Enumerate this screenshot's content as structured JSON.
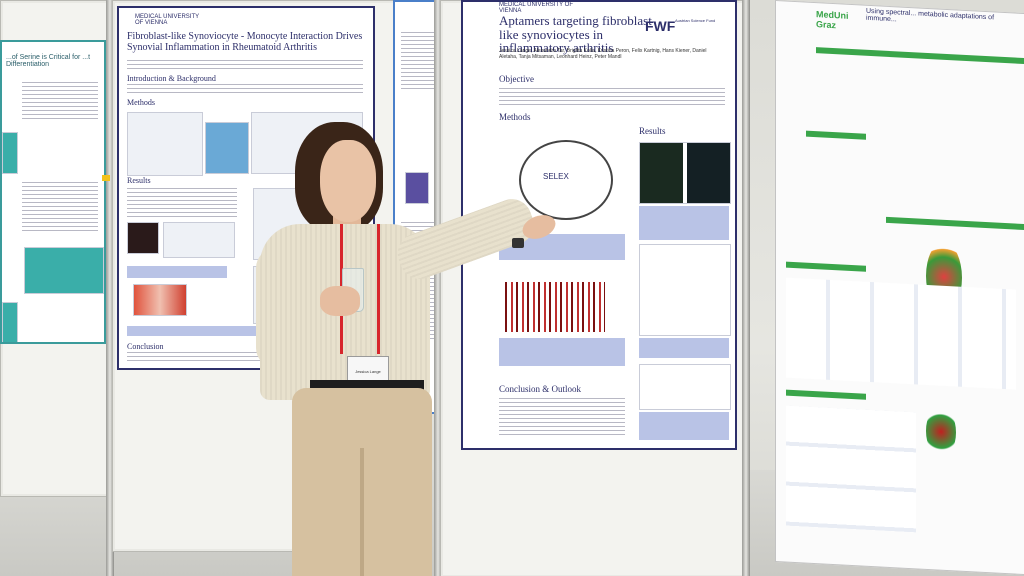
{
  "scene": {
    "description_alt": ""
  },
  "poster_left": {
    "logo": "MEDICAL UNIVERSITY OF VIENNA",
    "title": "Fibroblast-like Synoviocyte - Monocyte Interaction Drives Synovial Inflammation in Rheumatoid Arthritis",
    "section_intro": "Introduction & Background",
    "section_methods": "Methods",
    "section_results": "Results",
    "section_conclusion": "Conclusion"
  },
  "poster_far_left": {
    "title_fragment": "...of Serine is Critical for ...t Differentiation"
  },
  "poster_center": {
    "logo": "MEDICAL UNIVERSITY OF VIENNA",
    "funder": "FWF",
    "funder_sub": "Austrian Science Fund",
    "title": "Aptamers targeting fibroblast-like synoviocytes in inflammatory arthritis",
    "authors": "Jessica Lange, Alexandra Tar, Brigitta Kolla, Kristina Peron, Felix Kartnig, Hans Kiener, Daniel Aletaha, Tanja Mitsaman, Leonhard Heinz, Peter Mandl",
    "section_objective": "Objective",
    "section_methods": "Methods",
    "section_results": "Results",
    "section_conclusion": "Conclusion & Outlook",
    "selex_label": "SELEX"
  },
  "poster_right": {
    "logo": "MedUni Graz",
    "title_fragment": "Using spectral... metabolic adaptations of immune..."
  },
  "badge_text": "Jessica Lange",
  "colors": {
    "poster_navy": "#2d2f6a",
    "lanyard_red": "#d7262c",
    "green": "#3aa54a"
  }
}
